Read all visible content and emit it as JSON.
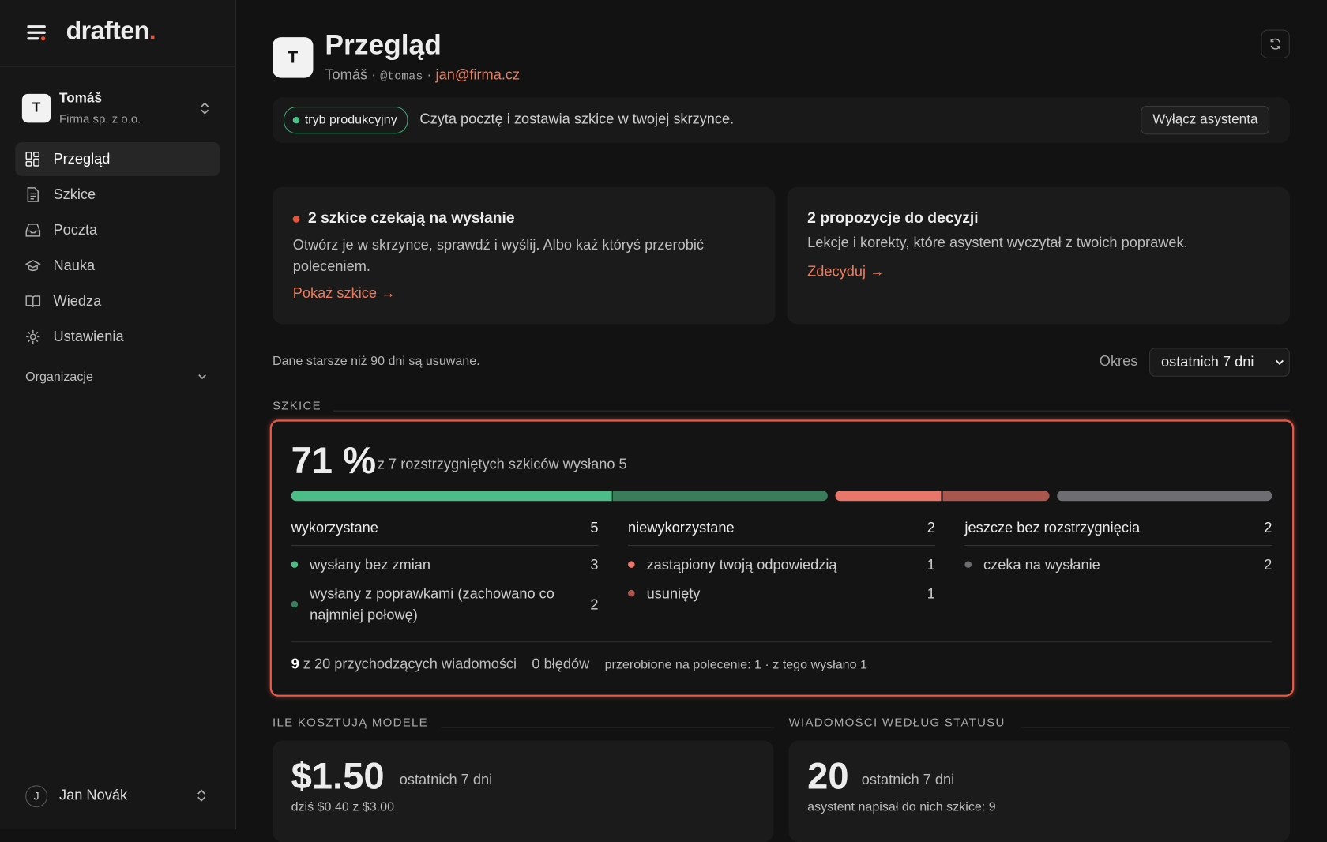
{
  "sidebar": {
    "logo": "draften",
    "logo_dot": ".",
    "account": {
      "avatar": "T",
      "name": "Tomáš",
      "company": "Firma sp. z o.o."
    },
    "nav": [
      {
        "label": "Przegląd",
        "active": true
      },
      {
        "label": "Szkice",
        "active": false
      },
      {
        "label": "Poczta",
        "active": false
      },
      {
        "label": "Nauka",
        "active": false
      },
      {
        "label": "Wiedza",
        "active": false
      },
      {
        "label": "Ustawienia",
        "active": false
      }
    ],
    "section": "Organizacje",
    "user": {
      "avatar": "J",
      "name": "Jan Novák"
    }
  },
  "header": {
    "avatar": "T",
    "title": "Przegląd",
    "name": "Tomáš",
    "separator": "·",
    "handle": "@tomas",
    "email": "jan@firma.cz"
  },
  "banner": {
    "badge": "tryb produkcyjny",
    "text": "Czyta pocztę i zostawia szkice w twojej skrzynce.",
    "button": "Wyłącz asystenta"
  },
  "cards": [
    {
      "title": "2 szkice czekają na wysłanie",
      "text": "Otwórz je w skrzynce, sprawdź i wyślij. Albo każ któryś przerobić poleceniem.",
      "link": "Pokaż szkice →"
    },
    {
      "title": "2 propozycje do decyzji",
      "text": "Lekcje i korekty, które asystent wyczytał z twoich poprawek.",
      "link": "Zdecyduj →"
    }
  ],
  "retention": "Dane starsze niż 90 dni są usuwane.",
  "period": {
    "label": "Okres",
    "value": "ostatnich 7 dni"
  },
  "drafts": {
    "section": "SZKICE",
    "percent": "71 %",
    "summary": "z 7 rozstrzygniętych szkiców wysłano 5",
    "groups": [
      {
        "name": "wykorzystane",
        "total": 5,
        "items": [
          {
            "label": "wysłany bez zmian",
            "count": 3,
            "color": "#4cbd86"
          },
          {
            "label": "wysłany z poprawkami (zachowano co najmniej połowę)",
            "count": 2,
            "color": "#3a7d5b"
          }
        ]
      },
      {
        "name": "niewykorzystane",
        "total": 2,
        "items": [
          {
            "label": "zastąpiony twoją odpowiedzią",
            "count": 1,
            "color": "#e8766a"
          },
          {
            "label": "usunięty",
            "count": 1,
            "color": "#a9564f"
          }
        ]
      },
      {
        "name": "jeszcze bez rozstrzygnięcia",
        "total": 2,
        "items": [
          {
            "label": "czeka na wysłanie",
            "count": 2,
            "color": "#6d6d72"
          }
        ]
      }
    ],
    "footer": {
      "processed": 9,
      "processed_text": "z 20 przychodzących wiadomości",
      "errors": "0 błędów",
      "redone": "przerobione na polecenie: 1 · z tego wysłano 1"
    }
  },
  "costs": {
    "section": "ILE KOSZTUJĄ MODELE",
    "amount": "$1.50",
    "period": "ostatnich 7 dni",
    "today": "dziś $0.40 z $3.00"
  },
  "messages": {
    "section": "WIADOMOŚCI WEDŁUG STATUSU",
    "count": 20,
    "period": "ostatnich 7 dni",
    "note": "asystent napisał do nich szkice: 9"
  }
}
